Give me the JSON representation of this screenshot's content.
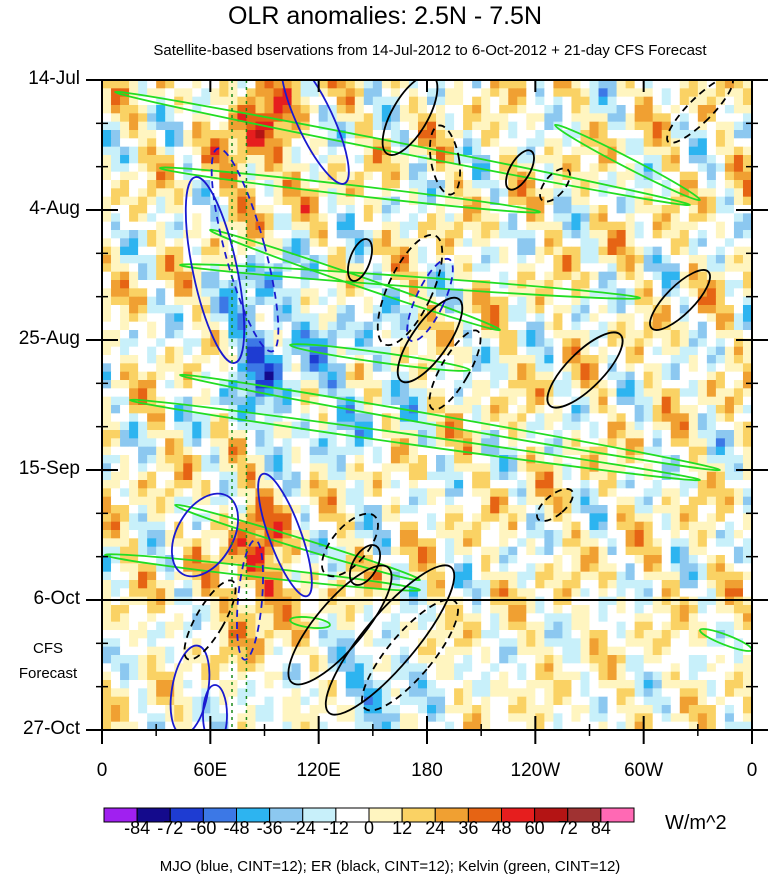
{
  "chart_data": {
    "type": "heatmap",
    "title": "OLR anomalies: 2.5N - 7.5N",
    "subtitle": "Satellite-based bservations from 14-Jul-2012 to 6-Oct-2012 + 21-day CFS Forecast",
    "y_ticks": [
      "14-Jul",
      "4-Aug",
      "25-Aug",
      "15-Sep",
      "6-Oct",
      "27-Oct"
    ],
    "forecast_start": "6-Oct",
    "forecast_label": [
      "CFS",
      "Forecast"
    ],
    "x_ticks": [
      "0",
      "60E",
      "120E",
      "180",
      "120W",
      "60W",
      "0"
    ],
    "x_range_deg_east": [
      0,
      360
    ],
    "colorbar": {
      "labels": [
        "-84",
        "-72",
        "-60",
        "-48",
        "-36",
        "-24",
        "-12",
        "0",
        "12",
        "24",
        "36",
        "48",
        "60",
        "72",
        "84"
      ],
      "colors": [
        "#a020f0",
        "#140a8c",
        "#1e3cd2",
        "#3c78e6",
        "#2db4f0",
        "#8cc8f0",
        "#c8f0fa",
        "#ffffff",
        "#fff5c0",
        "#fad264",
        "#f0a032",
        "#e66414",
        "#e61e1e",
        "#b41414",
        "#a03232",
        "#ff69b4"
      ],
      "units": "W/m^2"
    },
    "contours_legend": "MJO (blue, CINT=12); ER (black, CINT=12); Kelvin (green, CINT=12)",
    "series_colors": {
      "mjo": "#1a1ad0",
      "er": "#000000",
      "kelvin": "#22dd22"
    },
    "reference_longitude_lines_deg": [
      72,
      80
    ]
  }
}
